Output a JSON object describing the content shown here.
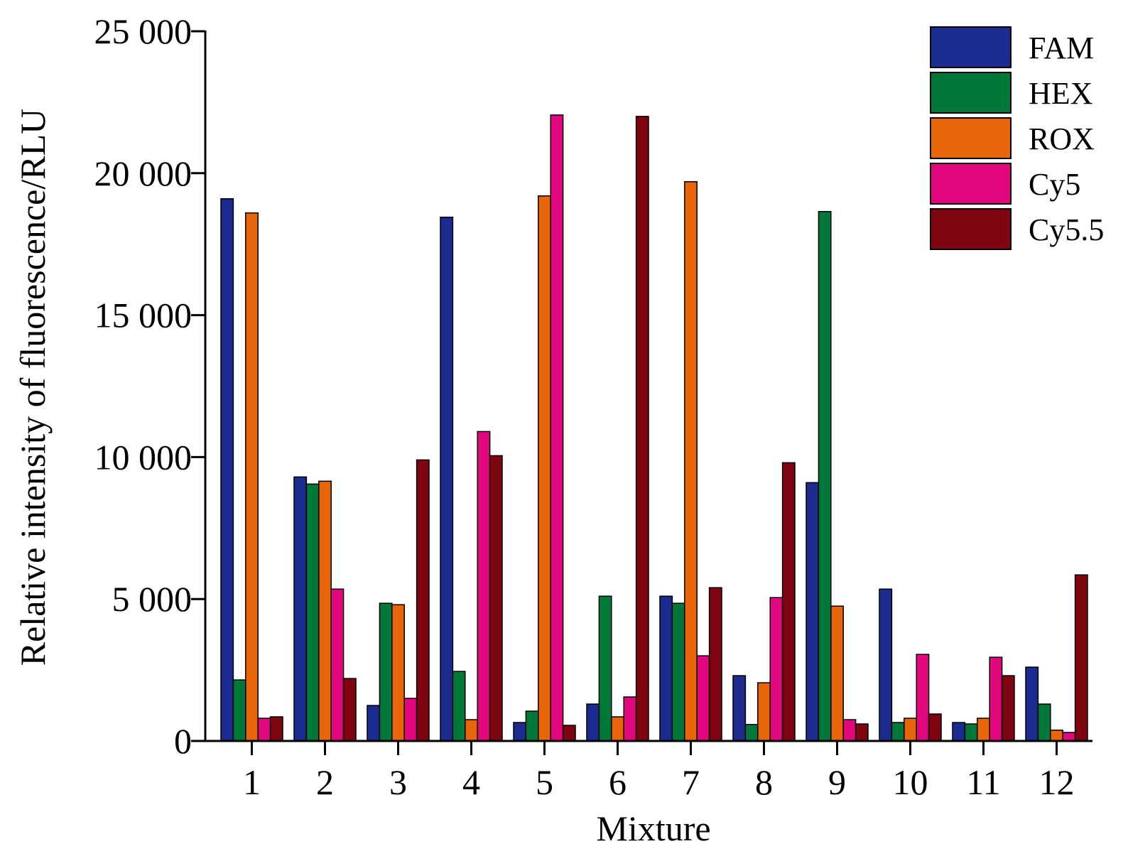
{
  "chart_data": {
    "type": "bar",
    "title": "",
    "xlabel": "Mixture",
    "ylabel": "Relative intensity of fluorescence/RLU",
    "ylim": [
      0,
      25000
    ],
    "yticks": [
      0,
      5000,
      10000,
      15000,
      20000,
      25000
    ],
    "ytick_labels": [
      "0",
      "5 000",
      "10 000",
      "15 000",
      "20 000",
      "25 000"
    ],
    "categories": [
      "1",
      "2",
      "3",
      "4",
      "5",
      "6",
      "7",
      "8",
      "9",
      "10",
      "11",
      "12"
    ],
    "grid": false,
    "legend_position": "top-right",
    "series": [
      {
        "name": "FAM",
        "color": "#1c2b8f",
        "values": [
          19100,
          9300,
          1250,
          18450,
          650,
          1300,
          5100,
          2300,
          9100,
          5350,
          650,
          2600
        ]
      },
      {
        "name": "HEX",
        "color": "#00783a",
        "values": [
          2150,
          9050,
          4850,
          2450,
          1050,
          5100,
          4850,
          580,
          18650,
          650,
          600,
          1300
        ]
      },
      {
        "name": "ROX",
        "color": "#e8650a",
        "values": [
          18600,
          9150,
          4800,
          750,
          19200,
          850,
          19700,
          2050,
          4750,
          800,
          800,
          380
        ]
      },
      {
        "name": "Cy5",
        "color": "#e2077e",
        "values": [
          800,
          5350,
          1500,
          10900,
          22050,
          1550,
          3000,
          5050,
          750,
          3050,
          2950,
          300
        ]
      },
      {
        "name": "Cy5.5",
        "color": "#7e0510",
        "values": [
          850,
          2200,
          9900,
          10050,
          550,
          22000,
          5400,
          9800,
          600,
          950,
          2300,
          5850
        ]
      }
    ]
  }
}
